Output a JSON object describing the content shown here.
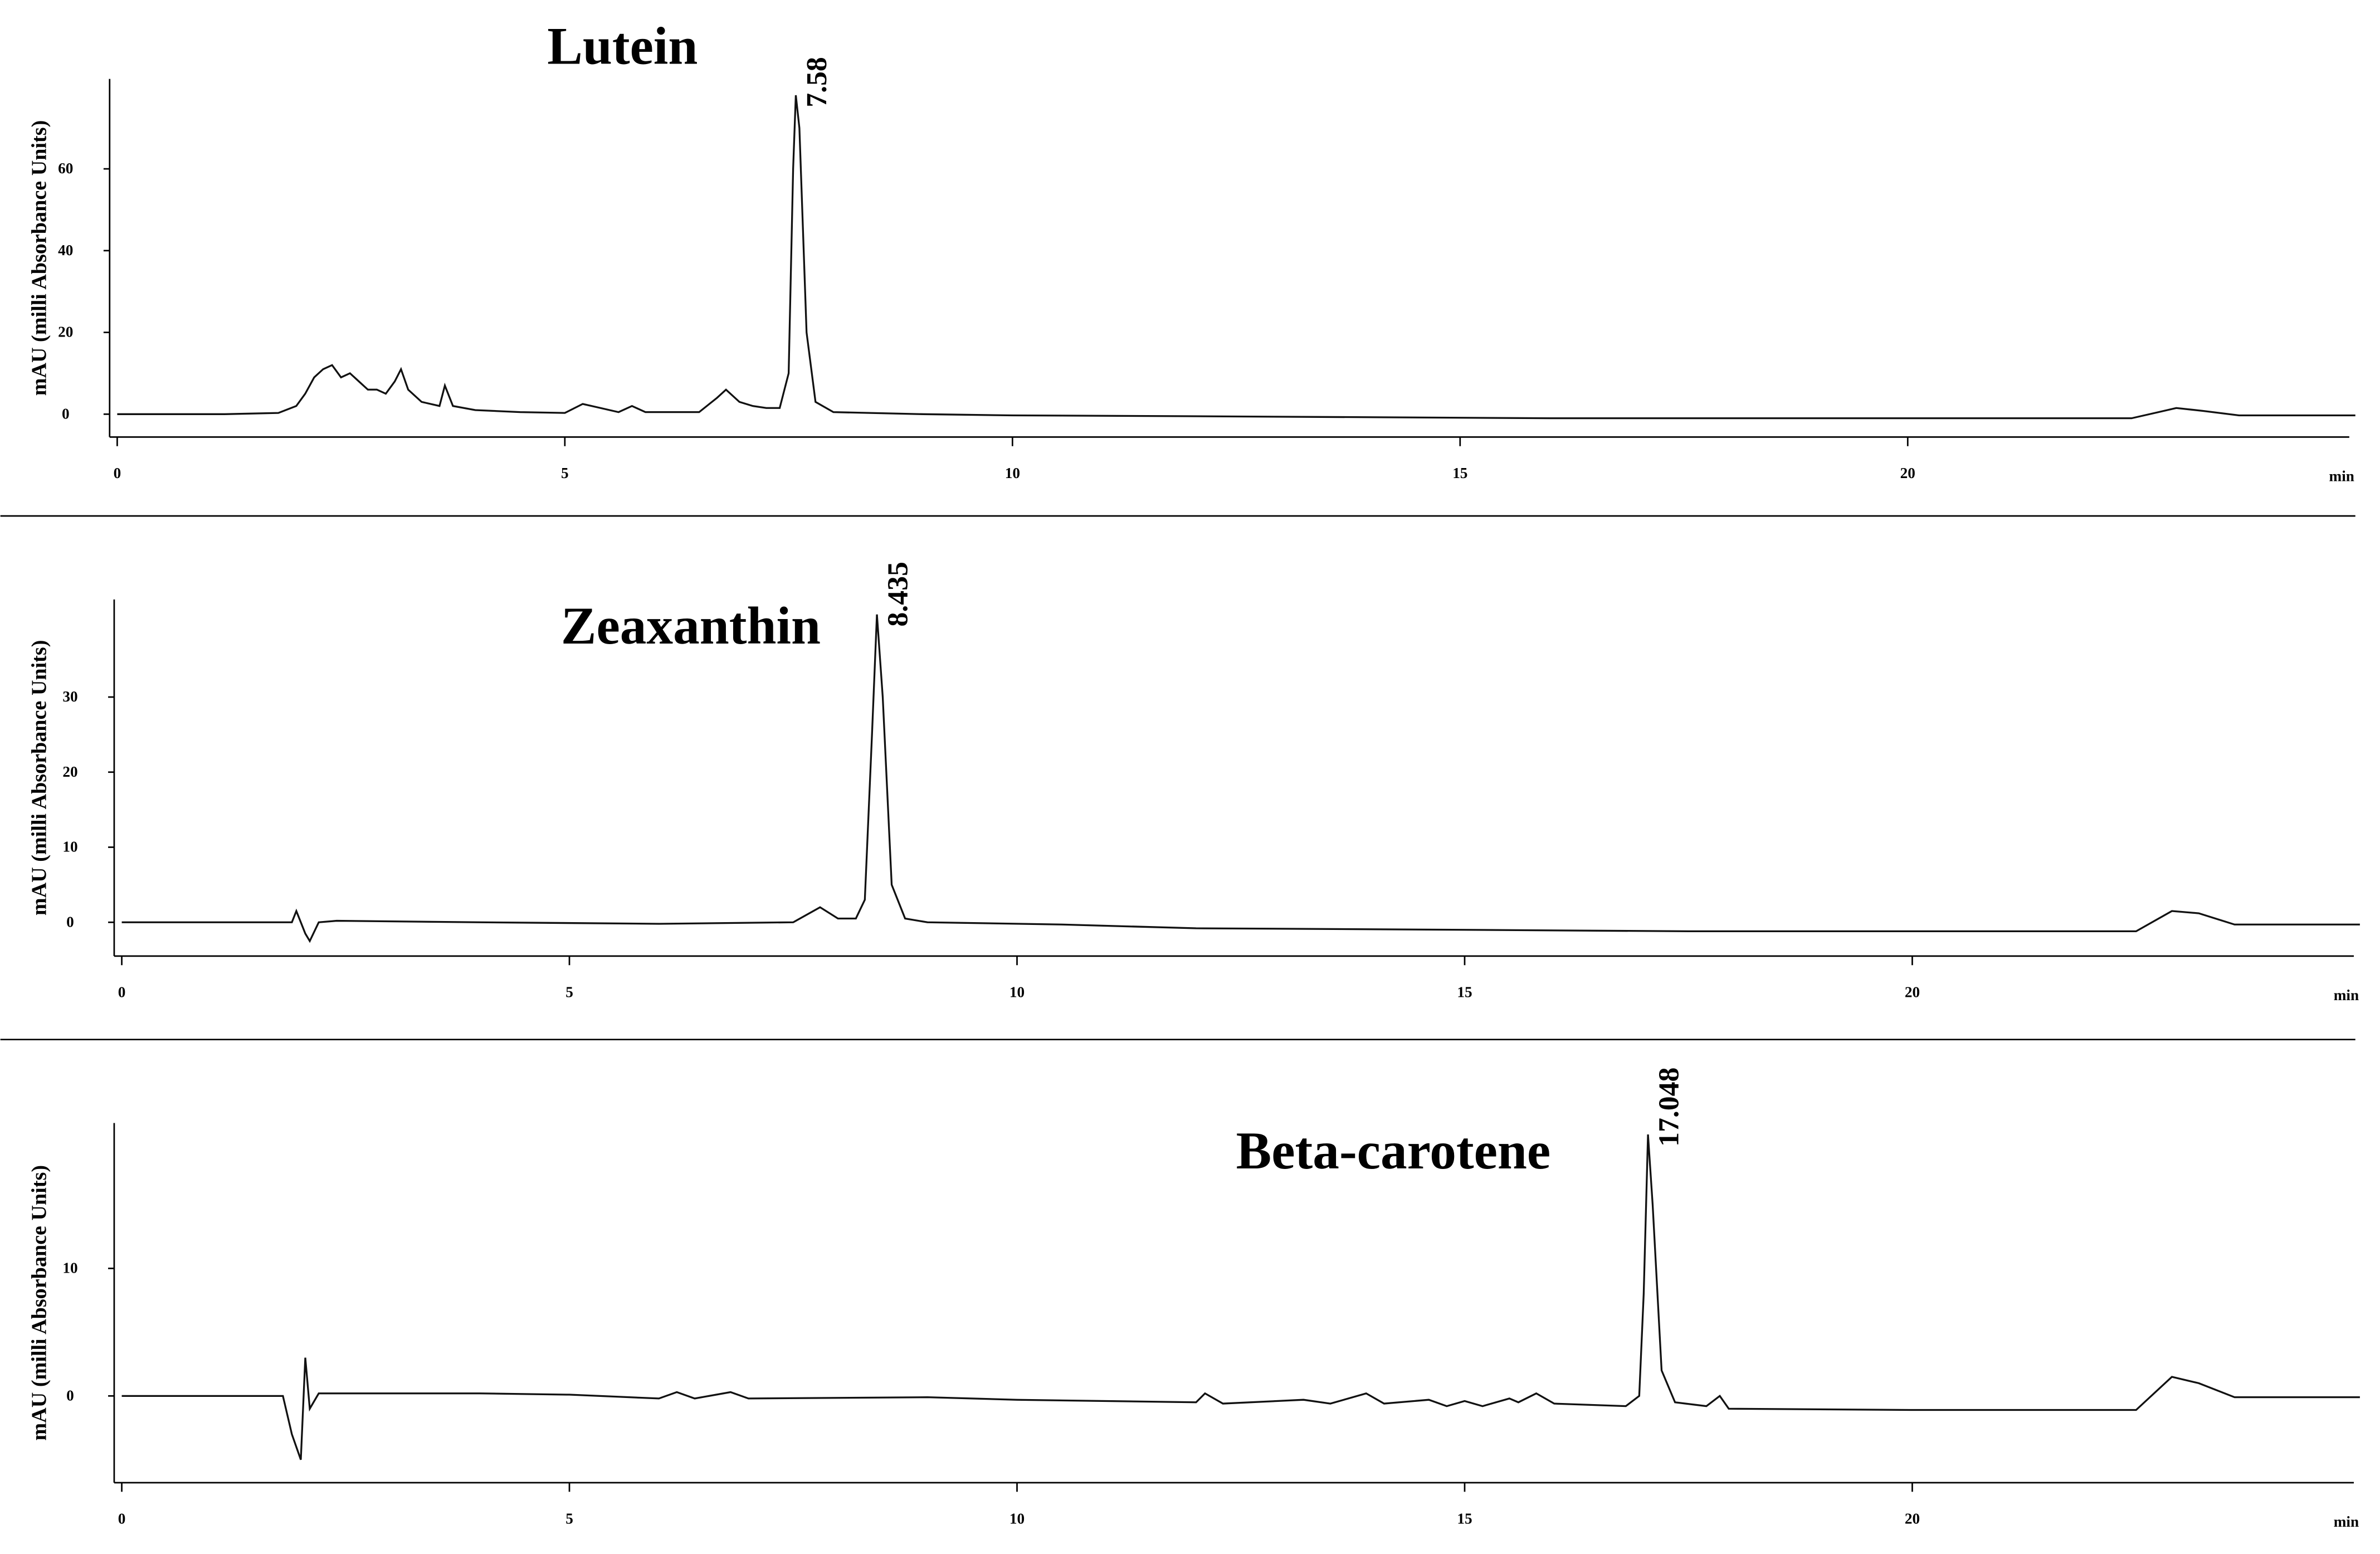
{
  "chart_data": [
    {
      "type": "line",
      "title": "Lutein",
      "ylabel": "mAU (milli Absorbance Units)",
      "xlabel": "min",
      "peak_label": {
        "value": 7.58,
        "label": "7.58"
      },
      "xlim": [
        0,
        25
      ],
      "ylim": [
        -5.6,
        82
      ],
      "xticks": [
        0,
        5,
        10,
        15,
        20
      ],
      "yticks": [
        0,
        20,
        40,
        60
      ],
      "color": "#111111",
      "x": [
        0,
        1.2,
        1.8,
        2.0,
        2.1,
        2.2,
        2.3,
        2.4,
        2.5,
        2.6,
        2.7,
        2.8,
        2.9,
        3.0,
        3.1,
        3.17,
        3.25,
        3.4,
        3.6,
        3.66,
        3.75,
        4.0,
        4.5,
        5.0,
        5.2,
        5.4,
        5.6,
        5.75,
        5.9,
        6.5,
        6.7,
        6.8,
        6.95,
        7.1,
        7.25,
        7.4,
        7.5,
        7.55,
        7.58,
        7.62,
        7.7,
        7.8,
        8.0,
        9,
        10,
        12,
        16,
        22.5,
        22.8,
        23,
        23.3,
        23.7,
        25
      ],
      "values": [
        0,
        0,
        0.3,
        2,
        5,
        9,
        11,
        12,
        9,
        10,
        8,
        6,
        6,
        5,
        8,
        11,
        6,
        3,
        2,
        7,
        2,
        1,
        0.5,
        0.3,
        2.5,
        1.5,
        0.5,
        2,
        0.5,
        0.5,
        4,
        6,
        3,
        2,
        1.5,
        1.5,
        10,
        60,
        78,
        70,
        20,
        3,
        0.5,
        0,
        -0.3,
        -0.5,
        -1,
        -1,
        0.5,
        1.5,
        0.8,
        -0.3,
        -0.3
      ]
    },
    {
      "type": "line",
      "title": "Zeaxanthin",
      "ylabel": "mAU (milli Absorbance Units)",
      "xlabel": "min",
      "peak_label": {
        "value": 8.435,
        "label": "8.435"
      },
      "xlim": [
        0,
        25
      ],
      "ylim": [
        -4.5,
        43
      ],
      "xticks": [
        0,
        5,
        10,
        15,
        20
      ],
      "yticks": [
        0,
        10,
        20,
        30
      ],
      "color": "#111111",
      "x": [
        0,
        1.9,
        1.95,
        2.0,
        2.05,
        2.1,
        2.2,
        2.4,
        4,
        6,
        7.5,
        7.8,
        8.0,
        8.2,
        8.3,
        8.38,
        8.435,
        8.5,
        8.6,
        8.75,
        9,
        10.5,
        12,
        15,
        17.5,
        22.5,
        22.9,
        23.2,
        23.6,
        25
      ],
      "values": [
        0,
        0,
        1.5,
        0,
        -1.5,
        -2.5,
        0,
        0.2,
        0,
        -0.2,
        0,
        2,
        0.5,
        0.5,
        3,
        25,
        41,
        30,
        5,
        0.5,
        0,
        -0.3,
        -0.8,
        -1,
        -1.2,
        -1.2,
        1.5,
        1.2,
        -0.3,
        -0.3
      ]
    },
    {
      "type": "line",
      "title": "Beta-carotene",
      "ylabel": "mAU (milli Absorbance Units)",
      "xlabel": "min",
      "peak_label": {
        "value": 17.048,
        "label": "17.048"
      },
      "xlim": [
        0,
        25
      ],
      "ylim": [
        -6.8,
        21.4
      ],
      "xticks": [
        0,
        5,
        10,
        15,
        20
      ],
      "yticks": [
        0,
        10
      ],
      "color": "#111111",
      "x": [
        0,
        1.8,
        1.9,
        2.0,
        2.05,
        2.1,
        2.2,
        4,
        5,
        6,
        6.2,
        6.4,
        6.8,
        7,
        9,
        10,
        12,
        12.1,
        12.3,
        13.2,
        13.5,
        13.9,
        14.1,
        14.6,
        14.8,
        15,
        15.2,
        15.5,
        15.6,
        15.8,
        16,
        16.8,
        16.95,
        17.0,
        17.048,
        17.1,
        17.2,
        17.35,
        17.7,
        17.85,
        17.95,
        20,
        22.5,
        22.9,
        23.2,
        23.6,
        25
      ],
      "values": [
        0,
        0,
        -3,
        -5,
        3,
        -1,
        0.2,
        0.2,
        0.1,
        -0.2,
        0.3,
        -0.2,
        0.3,
        -0.2,
        -0.1,
        -0.3,
        -0.5,
        0.2,
        -0.6,
        -0.3,
        -0.6,
        0.2,
        -0.6,
        -0.3,
        -0.8,
        -0.4,
        -0.8,
        -0.2,
        -0.5,
        0.2,
        -0.6,
        -0.8,
        0,
        8,
        20.5,
        15,
        2,
        -0.5,
        -0.8,
        0,
        -1,
        -1.1,
        -1.1,
        1.5,
        1,
        -0.1,
        -0.1
      ]
    }
  ]
}
